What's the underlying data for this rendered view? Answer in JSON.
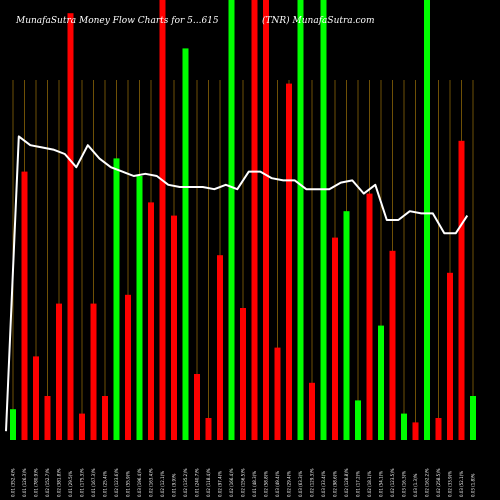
{
  "chart_data": {
    "type": "bar",
    "title_parts": [
      "MunafaSutra Money Flow  Charts for 5...615",
      "(TNR) MunafaSutra.com"
    ],
    "xlabel": "",
    "ylabel": "",
    "grid": "vertical-lines",
    "categories": [
      "Fri 01 Feb 2019",
      "Thu 31 Jan 2019",
      "Wed 30 Jan 2019",
      "Tue 29 Jan 2019",
      "Mon 28 Jan 2019",
      "Fri 25 Jan 2019",
      "Thu 24 Jan 2019",
      "Wed 23 Jan 2019",
      "Tue 22 Jan 2019",
      "Mon 21 Jan 2019",
      "Fri 18 Jan 2019",
      "Thu 17 Jan 2019",
      "Wed 16 Jan 2019",
      "Tue 15 Jan 2019",
      "Mon 14 Jan 2019",
      "Fri 11 Jan 2019",
      "Thu 10 Jan 2019",
      "Wed 09 Jan 2019",
      "Tue 08 Jan 2019",
      "Mon 07 Jan 2019",
      "Fri 04 Jan 2019",
      "Thu 03 Jan 2019",
      "Wed 02 Jan 2019",
      "Tue 01 Jan 2019",
      "Mon 31 Dec 2018",
      "Fri 28 Dec 2018",
      "Thu 27 Dec 2018",
      "Wed 26 Dec 2018",
      "Mon 24 Dec 2018",
      "Fri 21 Dec 2018",
      "Thu 20 Dec 2018",
      "Wed 19 Dec 2018",
      "Tue 18 Dec 2018",
      "Mon 17 Dec 2018",
      "Fri 14 Dec 2018",
      "Thu 13 Dec 2018",
      "Wed 12 Dec 2018",
      "Tue 11 Dec 2018",
      "Mon 10 Dec 2018",
      "Fri 07 Dec 2018",
      "Thu 06 Dec 2018"
    ],
    "x_tick_labels": [
      "0.01 (352.4)%",
      "0.01 (126.3)%",
      "0.01 (780.9)%",
      "0.02 (152.7)%",
      "0.02 (381.8)%",
      "0.01 (29.5)%",
      "0.01 (175.3)%",
      "0.01 (167.3)%",
      "0.01 (25.4)%",
      "0.02 (123.6)%",
      "0.01 (55.9)%",
      "0.03 (196.4)%",
      "0.02 (163.4)%",
      "0.02 (12.1)%",
      "0.01 (9.9)%",
      "0.02 (135.2)%",
      "0.01 (240.7)%",
      "0.02 (118.4)%",
      "0.02 (97.4)%",
      "0.02 (166.4)%",
      "0.02 (156.5)%",
      "0.01 (48.3)%",
      "0.02 (58.8)%",
      "0.03 (49.4)%",
      "0.02 (29.4)%",
      "0.03 (63.3)%",
      "0.02 (129.3)%",
      "0.03 (33.4)%",
      "0.02 (98.6)%",
      "0.02 (128.8)%",
      "0.01 (17.2)%",
      "0.02 (18.1)%",
      "0.01 (54.1)%",
      "0.02 (123.5)%",
      "0.03 (16.3)%",
      "0.03 (1.3)%",
      "0.02 (162.2)%",
      "0.02 (258.5)%",
      "0.02 (33.9)%",
      "0.03 (52.1)%",
      "0.03 (1.8)%"
    ],
    "ylim": [
      0,
      100
    ],
    "values": [
      7,
      61,
      19,
      10,
      31,
      97,
      6,
      31,
      10,
      64,
      33,
      60,
      54,
      100,
      51,
      89,
      15,
      5,
      42,
      100,
      30,
      100,
      100,
      21,
      81,
      100,
      13,
      100,
      46,
      52,
      9,
      56,
      26,
      43,
      6,
      4,
      100,
      5,
      38,
      68,
      10
    ],
    "flow": [
      "in",
      "out",
      "out",
      "out",
      "out",
      "out",
      "out",
      "out",
      "out",
      "in",
      "out",
      "in",
      "out",
      "out",
      "out",
      "in",
      "out",
      "out",
      "out",
      "in",
      "out",
      "out",
      "out",
      "out",
      "out",
      "in",
      "out",
      "in",
      "out",
      "in",
      "in",
      "out",
      "in",
      "out",
      "in",
      "out",
      "in",
      "out",
      "out",
      "out",
      "in"
    ],
    "line": {
      "ylim": [
        0,
        100
      ],
      "values": [
        2,
        69,
        67,
        66.5,
        66,
        65,
        62,
        67,
        64,
        62,
        61,
        60,
        60.5,
        60,
        58,
        57.5,
        57.5,
        57.5,
        57,
        58,
        57,
        61,
        61,
        59.5,
        59,
        59,
        57,
        57,
        57,
        58.5,
        59,
        56,
        58,
        50,
        50,
        52,
        51.5,
        51.5,
        47,
        47,
        51
      ]
    },
    "colors": {
      "background": "#000000",
      "inflow": "#00ff00",
      "outflow": "#ff0000",
      "line": "#ffffff",
      "grid": "#b8860b",
      "text": "#ffffff"
    }
  }
}
